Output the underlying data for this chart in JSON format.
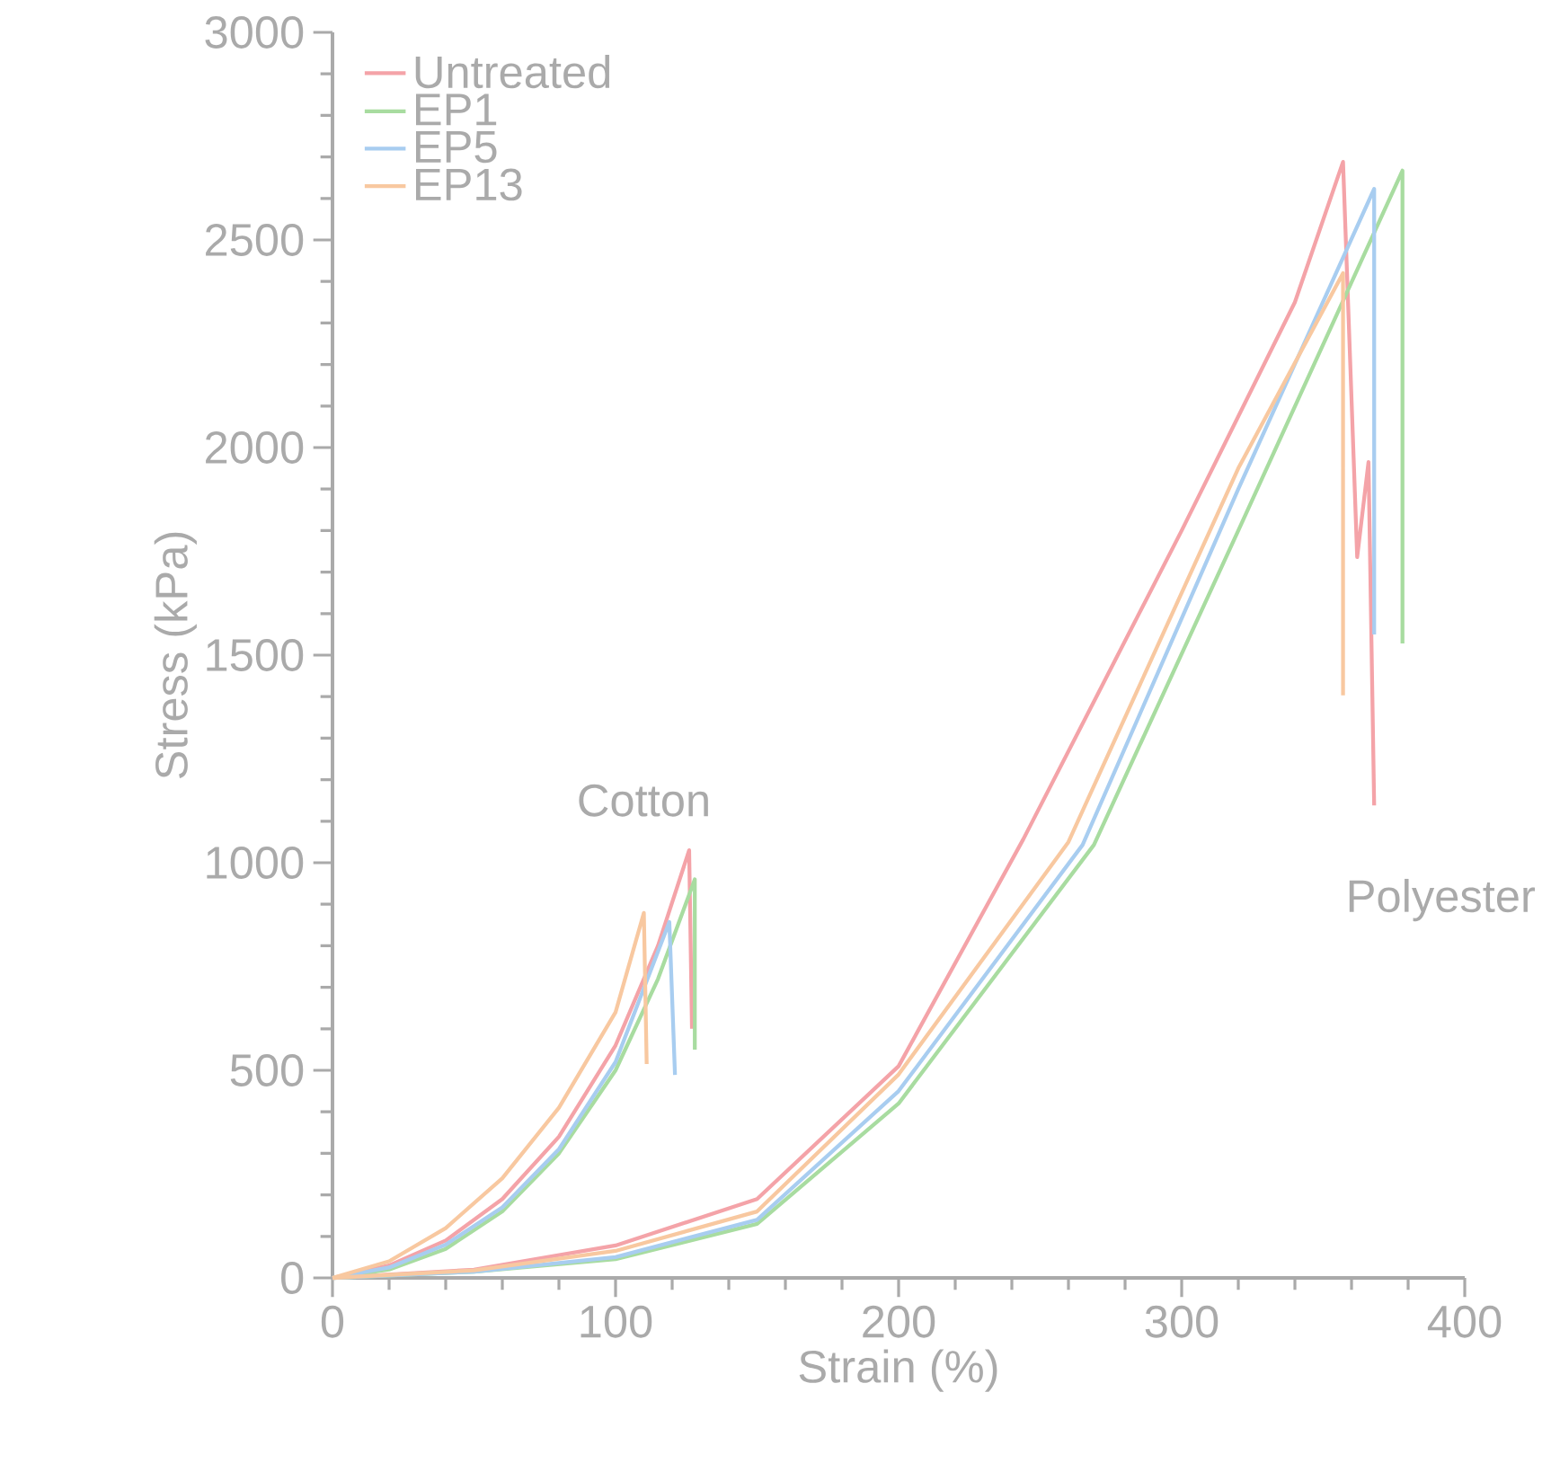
{
  "chart_data": {
    "type": "line",
    "xlabel": "Strain (%)",
    "ylabel": "Stress (kPa)",
    "xlim": [
      0,
      400
    ],
    "ylim": [
      0,
      3000
    ],
    "xticks": [
      0,
      100,
      200,
      300,
      400
    ],
    "yticks": [
      0,
      500,
      1000,
      1500,
      2000,
      2500,
      3000
    ],
    "grid": false,
    "legend": "top left",
    "marker": "none",
    "line_style": "solid",
    "annotations": [
      "Cotton",
      "Polyester"
    ],
    "series": [
      {
        "name": "Untreated",
        "color": "#f4a3a8",
        "x": [
          0,
          20,
          40,
          60,
          80,
          100,
          115,
          126,
          127,
          null,
          0,
          50,
          100,
          150,
          200,
          244,
          300,
          340,
          357,
          362,
          366,
          368
        ],
        "values": [
          0,
          30,
          90,
          190,
          340,
          560,
          800,
          1030,
          600,
          null,
          0,
          20,
          78,
          190,
          510,
          1056,
          1800,
          2350,
          2688,
          1736,
          1965,
          1138
        ]
      },
      {
        "name": "EP1",
        "color": "#a8dca0",
        "x": [
          0,
          20,
          40,
          60,
          80,
          100,
          115,
          128,
          128,
          null,
          0,
          50,
          100,
          150,
          200,
          269,
          320,
          378,
          378
        ],
        "values": [
          0,
          20,
          70,
          160,
          300,
          500,
          720,
          960,
          550,
          null,
          0,
          15,
          45,
          130,
          420,
          1043,
          1800,
          2667,
          1528
        ]
      },
      {
        "name": "EP5",
        "color": "#a8cdf0",
        "x": [
          0,
          20,
          40,
          60,
          80,
          100,
          119,
          121,
          null,
          0,
          50,
          100,
          150,
          200,
          265,
          320,
          368,
          368
        ],
        "values": [
          0,
          25,
          80,
          170,
          310,
          520,
          857,
          489,
          null,
          0,
          15,
          50,
          140,
          450,
          1043,
          1900,
          2623,
          1550
        ]
      },
      {
        "name": "EP13",
        "color": "#f8c8a0",
        "x": [
          0,
          20,
          40,
          60,
          80,
          100,
          110,
          111,
          null,
          0,
          50,
          100,
          150,
          200,
          260,
          320,
          357,
          357
        ],
        "values": [
          0,
          40,
          120,
          240,
          410,
          640,
          879,
          515,
          null,
          0,
          18,
          65,
          160,
          490,
          1050,
          1950,
          2420,
          1403
        ]
      }
    ]
  }
}
